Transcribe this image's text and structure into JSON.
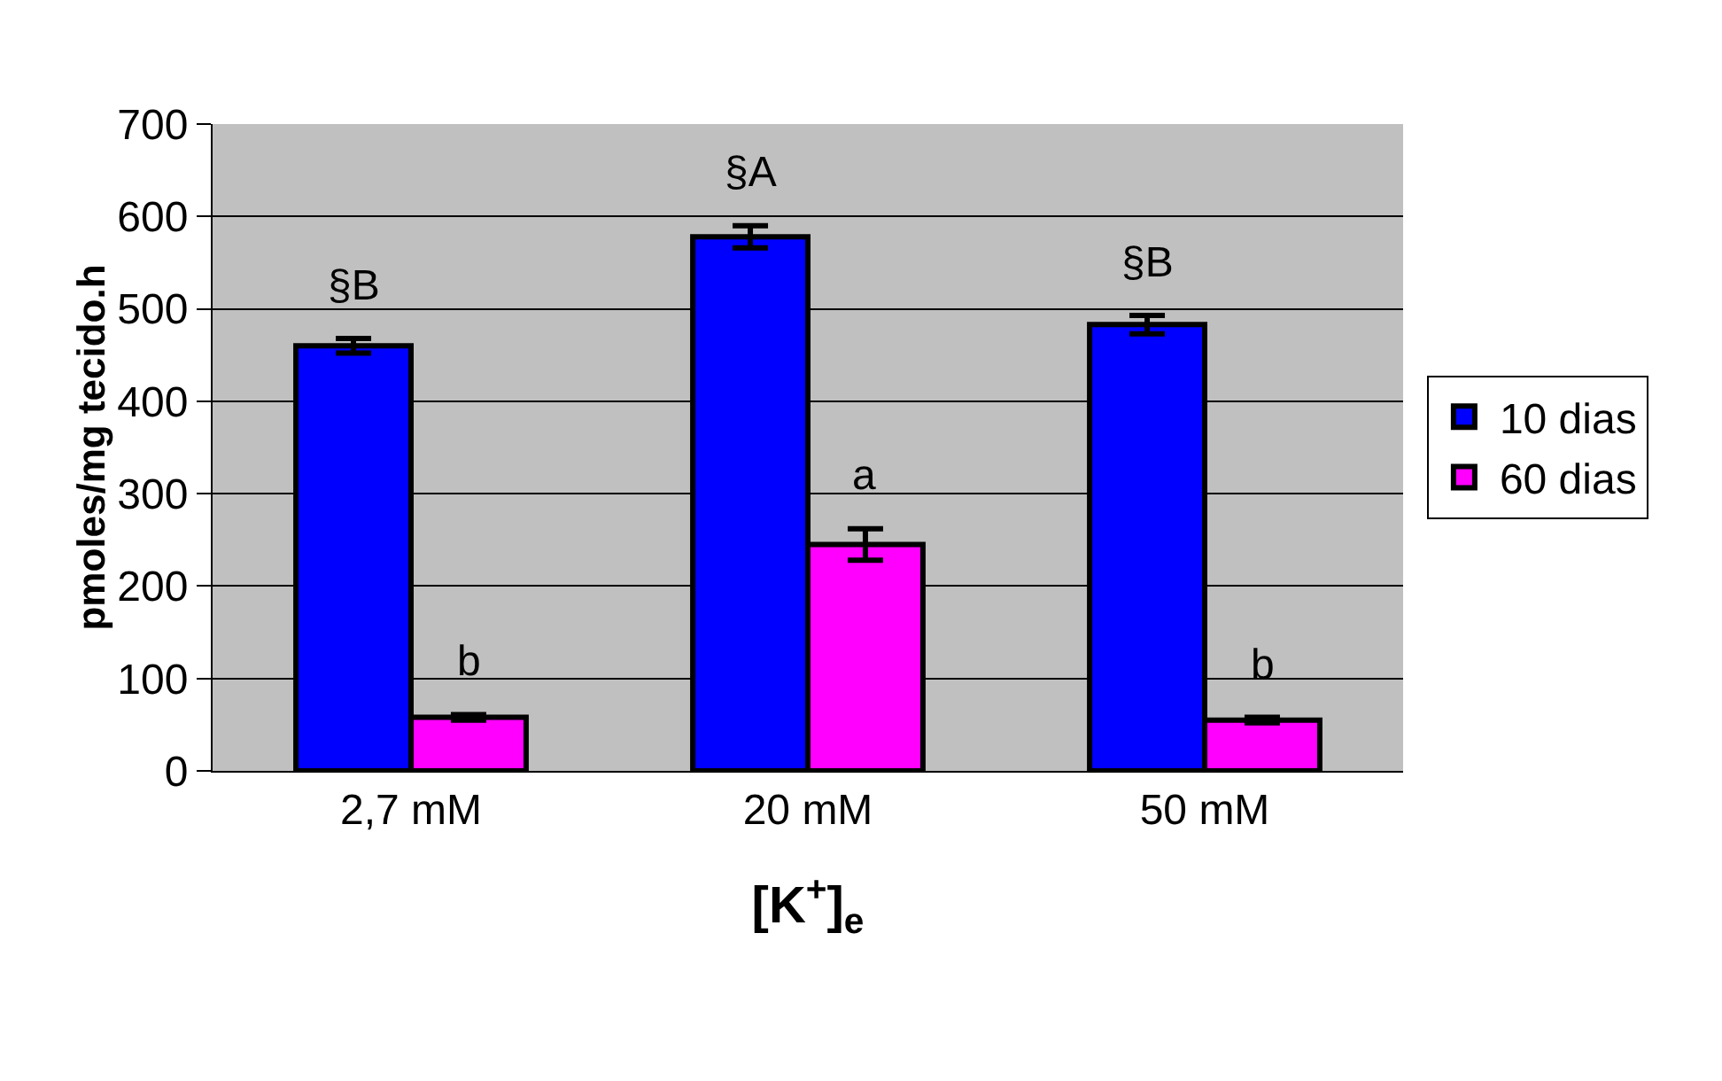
{
  "chart_data": {
    "type": "bar",
    "categories": [
      "2,7 mM",
      "20 mM",
      "50 mM"
    ],
    "series": [
      {
        "name": "10 dias",
        "color": "#0000ff",
        "values": [
          460,
          578,
          483
        ],
        "errors": [
          8,
          12,
          10
        ]
      },
      {
        "name": "60 dias",
        "color": "#ff00ff",
        "values": [
          58,
          245,
          55
        ],
        "errors": [
          3,
          17,
          3
        ]
      }
    ],
    "ylabel": "pmoles/mg tecido.h",
    "xlabel": "[K$^{+}$]$_{e}$",
    "ylim": [
      0,
      700
    ],
    "yticks": [
      0,
      100,
      200,
      300,
      400,
      500,
      600,
      700
    ],
    "grid": "y",
    "legend": "right",
    "annotations": [
      {
        "text": "§B",
        "x": "2,7 mM",
        "y": 460
      },
      {
        "text": "b",
        "x": "2,7 mM",
        "y": 58
      },
      {
        "text": "§A",
        "x": "20 mM",
        "y": 578
      },
      {
        "text": "a",
        "x": "20 mM",
        "y": 245
      },
      {
        "text": "§B",
        "x": "50 mM",
        "y": 483
      },
      {
        "text": "b",
        "x": "50 mM",
        "y": 55
      }
    ]
  }
}
